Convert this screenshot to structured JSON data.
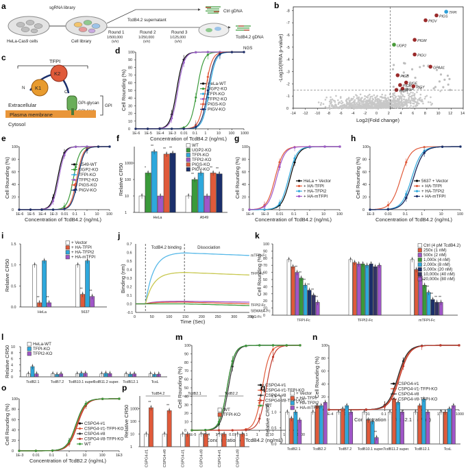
{
  "panels": {
    "a": "a",
    "b": "b",
    "c": "c",
    "d": "d",
    "e": "e",
    "f": "f",
    "g": "g",
    "h": "h",
    "i": "i",
    "j": "j",
    "k": "k",
    "l": "l",
    "m": "m",
    "n": "n",
    "o": "o",
    "p": "p",
    "q": "q"
  },
  "panel_a": {
    "sgrna": "sgRNA library",
    "hela_cas9": "HeLa-Cas9 cells",
    "cell_library": "Cell library",
    "supernatant": "TcdB4.2 supernatant",
    "rounds": [
      {
        "name": "Round 1",
        "dose": "1/500,000",
        "unit": "(v/v)"
      },
      {
        "name": "Round 2",
        "dose": "1/250,000",
        "unit": "(v/v)"
      },
      {
        "name": "Round 3",
        "dose": "1/125,000",
        "unit": "(v/v)"
      }
    ],
    "ctrl": "Ctrl gDNA",
    "tcdb": "TcdB4.2 gDNA",
    "ngs": "NGS"
  },
  "panel_b": {
    "ylabel": "-Log10(RRA p-value)",
    "xlabel": "Log2(Fold change)",
    "xticks": [
      "-14",
      "-12",
      "-10",
      "-8",
      "-6",
      "-4",
      "-2",
      "0",
      "2",
      "4",
      "6",
      "8",
      "10",
      "12",
      "14"
    ],
    "yticks": [
      "0",
      "-1",
      "-2",
      "-3",
      "-4",
      "-5",
      "-6",
      "-7",
      "-8"
    ],
    "genes": [
      {
        "name": "TFPI",
        "x": 11.2,
        "y": 7.9,
        "color": "#2e9fd8"
      },
      {
        "name": "PIGS",
        "x": 9.6,
        "y": 7.6,
        "color": "#9a2a2a"
      },
      {
        "name": "PIGV",
        "x": 7.8,
        "y": 7.2,
        "color": "#9a2a2a"
      },
      {
        "name": "UGP2",
        "x": 2.6,
        "y": 5.2,
        "color": "#4a9a3a"
      },
      {
        "name": "PIGM",
        "x": 6.0,
        "y": 5.6,
        "color": "#9a2a2a"
      },
      {
        "name": "PIGU",
        "x": 6.0,
        "y": 4.4,
        "color": "#9a2a2a"
      },
      {
        "name": "GPAA1",
        "x": 8.6,
        "y": 3.4,
        "color": "#9a2a2a"
      },
      {
        "name": "PIGB",
        "x": 3.2,
        "y": 2.7,
        "color": "#9a2a2a"
      },
      {
        "name": "PIGF",
        "x": 4.6,
        "y": 2.1,
        "color": "#9a2a2a"
      },
      {
        "name": "PIGK",
        "x": 3.6,
        "y": 1.9,
        "color": "#9a2a2a"
      },
      {
        "name": "PIGY",
        "x": 5.8,
        "y": 1.8,
        "color": "#9a2a2a"
      },
      {
        "name": "PIGP",
        "x": 4.0,
        "y": 1.6,
        "color": "#9a2a2a"
      },
      {
        "name": "PIGH",
        "x": 3.0,
        "y": 1.5,
        "color": "#9a2a2a"
      }
    ]
  },
  "panel_c": {
    "tfpi": "TFPI",
    "k1": "K1",
    "k2": "K2",
    "n": "N",
    "c": "C",
    "extracellular": "Extracellular",
    "glycan": "GPI-glycan",
    "lipid": "GPI-lipid",
    "gpi": "GPI",
    "membrane": "Plasma membrane",
    "cytosol": "Cytosol"
  },
  "curves": {
    "ylabel": "Cell Rounding (%)",
    "ylabel_short": "Cell Rounding (%)",
    "d": {
      "xlabel": "Concentration of TcdB4.2 (ng/mL)",
      "xticks": [
        "1E-6",
        "1E-5",
        "1E-4",
        "1E-3",
        "0.01",
        "0.1",
        "1",
        "10",
        "100",
        "1000"
      ],
      "yticks": [
        "0",
        "10",
        "20",
        "30",
        "40",
        "50",
        "60",
        "70",
        "80",
        "90",
        "100"
      ],
      "xmin": -6,
      "xmax": 3,
      "series": [
        {
          "name": "HeLa-WT",
          "color": "#000000",
          "ec50": -2.6
        },
        {
          "name": "UGP2-KO",
          "color": "#3a9a3a",
          "ec50": -0.9
        },
        {
          "name": "TFPI-KO",
          "color": "#2ea8dc",
          "ec50": 0.1
        },
        {
          "name": "TFPI2-KO",
          "color": "#9a60c8",
          "ec50": -2.5
        },
        {
          "name": "PIGS-KO",
          "color": "#e05a3a",
          "ec50": -0.2
        },
        {
          "name": "PIGV-KO",
          "color": "#1b2f6b",
          "ec50": 0.0
        }
      ]
    },
    "e": {
      "xlabel": "Concentration of TcdB4.2 (ng/mL)",
      "xticks": [
        "1E-6",
        "1E-5",
        "1E-4",
        "1E-3",
        "0.01",
        "0.1",
        "1",
        "10",
        "100"
      ],
      "yticks": [
        "0",
        "20",
        "40",
        "60",
        "80",
        "100"
      ],
      "xmin": -6,
      "xmax": 2,
      "series": [
        {
          "name": "A549-WT",
          "color": "#000000",
          "ec50": -2.6
        },
        {
          "name": "UGP2-KO",
          "color": "#3a9a3a",
          "ec50": -1.2
        },
        {
          "name": "TFPI-KO",
          "color": "#2ea8dc",
          "ec50": -0.8
        },
        {
          "name": "TFPI2-KO",
          "color": "#9a60c8",
          "ec50": -2.5
        },
        {
          "name": "PIGS-KO",
          "color": "#e05a3a",
          "ec50": -0.9
        },
        {
          "name": "PIGV-KO",
          "color": "#1b2f6b",
          "ec50": -0.8
        }
      ]
    },
    "g": {
      "xlabel": "Concentration of TcdB4.2 (ng/mL)",
      "xticks": [
        "1E-4",
        "1E-3",
        "0.01",
        "0.1",
        "1",
        "10",
        "100"
      ],
      "yticks": [
        "0",
        "20",
        "40",
        "60",
        "80",
        "100"
      ],
      "xmin": -4,
      "xmax": 2,
      "series": [
        {
          "name": "HeLa + Vector",
          "color": "#000000",
          "ec50": -1.3
        },
        {
          "name": "+ HA-TFPI",
          "color": "#e05a3a",
          "ec50": -2.3
        },
        {
          "name": "+ HA-TFPI2",
          "color": "#2ea8dc",
          "ec50": -1.4
        },
        {
          "name": "+ HA-mTFPI",
          "color": "#a056c8",
          "ec50": -2.2
        }
      ]
    },
    "h": {
      "xlabel": "Concentration of TcdB4.2 (ng/mL)",
      "xticks": [
        "1E-3",
        "0.01",
        "0.1",
        "1",
        "10",
        "100"
      ],
      "yticks": [
        "0",
        "20",
        "40",
        "60",
        "80",
        "100"
      ],
      "xmin": -3,
      "xmax": 2,
      "series": [
        {
          "name": "5637 + Vector",
          "color": "#000000",
          "ec50": -0.6
        },
        {
          "name": "+ HA-TFPI",
          "color": "#e05a3a",
          "ec50": -1.3
        },
        {
          "name": "+ HA-TFPI2",
          "color": "#2ea8dc",
          "ec50": -0.7
        },
        {
          "name": "+ HA-mTFPI",
          "color": "#1b2f6b",
          "ec50": -0.6
        }
      ]
    },
    "m": {
      "xlabel": "Concentration of TcdB4.2 (ng/mL)",
      "xticks": [
        "1E-5",
        "1E-4",
        "1E-3",
        "0.01",
        "0.1",
        "1",
        "10",
        "100",
        "1000"
      ],
      "yticks": [
        "0",
        "10",
        "20",
        "30",
        "40",
        "50",
        "60",
        "70",
        "80",
        "90",
        "100"
      ],
      "xmin": -5,
      "xmax": 3,
      "series": [
        {
          "name": "CSPG4-#1",
          "color": "#000000",
          "ec50": -2.4
        },
        {
          "name": "CSPG4-#1-TFPI-KO",
          "color": "#e05a3a",
          "ec50": 0.2
        },
        {
          "name": "CSPG4-#8",
          "color": "#333333",
          "ec50": -2.3
        },
        {
          "name": "CSPG4-#8-TFPI-KO",
          "color": "#c0392b",
          "ec50": 0.5
        },
        {
          "name": "WT",
          "color": "#3a9a3a",
          "ec50": -2.4
        }
      ]
    },
    "n": {
      "xlabel": "Concentration of TcdB2.1 (ng/mL)",
      "xticks": [
        "1E-4",
        "1E-3",
        "0.01",
        "0.1",
        "1",
        "10",
        "100",
        "1000"
      ],
      "yticks": [
        "0",
        "20",
        "40",
        "60",
        "80",
        "100"
      ],
      "xmin": -4,
      "xmax": 3,
      "series": [
        {
          "name": "CSPG4-#1",
          "color": "#000000",
          "ec50": -0.3
        },
        {
          "name": "CSPG4-#1-TFPI-KO",
          "color": "#e05a3a",
          "ec50": -0.25
        },
        {
          "name": "CSPG4-#8",
          "color": "#333333",
          "ec50": -0.3
        },
        {
          "name": "CSPG4-#8-TFPI-KO",
          "color": "#c0392b",
          "ec50": -0.2
        }
      ]
    },
    "o": {
      "xlabel": "Concentration of TcdB2.2 (ng/mL)",
      "xticks": [
        "1E-3",
        "0.01",
        "0.1",
        "1",
        "10",
        "100",
        "1E3"
      ],
      "yticks": [
        "0",
        "20",
        "40",
        "60",
        "80",
        "100"
      ],
      "xmin": -3,
      "xmax": 3,
      "series": [
        {
          "name": "CSPG4-#1",
          "color": "#000000",
          "ec50": 0.4
        },
        {
          "name": "CSPG4-#1-TFPI-KO",
          "color": "#e05a3a",
          "ec50": 0.45
        },
        {
          "name": "CSPG4-#8",
          "color": "#333333",
          "ec50": 0.4
        },
        {
          "name": "CSPG4-#8-TFPI-KO",
          "color": "#c0392b",
          "ec50": 0.5
        },
        {
          "name": "WT",
          "color": "#3a9a3a",
          "ec50": 0.4
        }
      ]
    }
  },
  "panel_f": {
    "ylabel": "Relative CR50",
    "groups": [
      "HeLa",
      "A549"
    ],
    "yticks": [
      "1",
      "10",
      "100",
      "1000"
    ],
    "series": [
      {
        "name": "WT",
        "color": "#ffffff"
      },
      {
        "name": "UGP2-KO",
        "color": "#3a9a3a"
      },
      {
        "name": "TFPI-KO",
        "color": "#2ea8dc"
      },
      {
        "name": "TFPI2-KO",
        "color": "#a056c8"
      },
      {
        "name": "PIGS-KO",
        "color": "#e05a3a"
      },
      {
        "name": "PIGV-KO",
        "color": "#1b2f6b"
      }
    ],
    "values": [
      [
        1,
        25,
        500,
        1,
        350,
        400
      ],
      [
        1,
        10,
        25,
        1,
        25,
        22
      ]
    ],
    "stars": [
      [
        "",
        "*",
        "**",
        "",
        "**",
        "**"
      ],
      [
        "",
        "**",
        "**",
        "",
        "**",
        "**"
      ]
    ]
  },
  "panel_i": {
    "ylabel": "Relative CR50",
    "groups": [
      "HeLa",
      "5637"
    ],
    "yticks": [
      "0.0",
      "0.5",
      "1.0",
      "1.5"
    ],
    "series": [
      {
        "name": "+ Vector",
        "color": "#ffffff"
      },
      {
        "name": "+ HA-TFPI",
        "color": "#e05a3a"
      },
      {
        "name": "+ HA-TFPI2",
        "color": "#2ea8dc"
      },
      {
        "name": "+ HA-mTFPI",
        "color": "#a056c8"
      }
    ],
    "values": [
      [
        1.0,
        0.1,
        1.1,
        0.1
      ],
      [
        1.0,
        0.3,
        1.1,
        0.25
      ]
    ],
    "stars": [
      [
        "",
        "**",
        "",
        "**"
      ],
      [
        "",
        "**",
        "",
        "**"
      ]
    ]
  },
  "panel_j": {
    "ylabel": "Binding (nm)",
    "xlabel": "Time (Sec)",
    "binding": "TcdB4.2 binding",
    "dissociation": "Dissociation",
    "xticks": [
      "0",
      "50",
      "100",
      "150",
      "200",
      "250",
      "300",
      "350"
    ],
    "yticks": [
      "-0.1",
      "0.0",
      "0.1",
      "0.2",
      "0.3",
      "0.4",
      "0.5",
      "0.6",
      "0.7"
    ],
    "series": [
      {
        "name": "mTFPI-Fc",
        "color": "#56b8e8",
        "plateau": 0.6,
        "end": 0.57
      },
      {
        "name": "TFPI-Fc",
        "color": "#c8c850",
        "plateau": 0.37,
        "end": 0.34
      },
      {
        "name": "TFPI2-Fc",
        "color": "#a056c8",
        "plateau": 0.03,
        "end": 0.02
      },
      {
        "name": "SEMA6A-Fc",
        "color": "#e05a3a",
        "plateau": 0.02,
        "end": 0.0
      },
      {
        "name": "IgG-Fc",
        "color": "#3a9a3a",
        "plateau": 0.0,
        "end": -0.02
      }
    ]
  },
  "panel_k": {
    "ylabel": "Cell Rounding (%)",
    "groups": [
      "TFPI-Fc",
      "TFPI2-Fc",
      "mTFPI-Fc"
    ],
    "yticks": [
      "0",
      "10",
      "20",
      "30",
      "40",
      "50",
      "60",
      "70",
      "80",
      "90",
      "100"
    ],
    "legend": [
      "Ctrl (4 pM TcdB4.2)",
      "250x (1 nM)",
      "500x (2 nM)",
      "1,000x (4 nM)",
      "2,000x (8 nM)",
      "5,000x (20 nM)",
      "10,000x (40 nM)",
      "20,000x (80 nM)"
    ],
    "colors": [
      "#ffffff",
      "#e05a3a",
      "#a056c8",
      "#3a9a3a",
      "#2ea8dc",
      "#1b2f6b",
      "#333366",
      "#a056c8"
    ],
    "values": [
      [
        78,
        68,
        60,
        52,
        42,
        35,
        28,
        18
      ],
      [
        78,
        74,
        72,
        72,
        70,
        72,
        68,
        70
      ],
      [
        78,
        64,
        55,
        42,
        32,
        22,
        18,
        18
      ]
    ],
    "stars": [
      [
        "",
        "*",
        "**",
        "**",
        "**",
        "**",
        "**",
        "**"
      ],
      [
        "",
        "",
        "",
        "",
        "",
        "",
        "",
        ""
      ],
      [
        "",
        "",
        "**",
        "**",
        "**",
        "**",
        "**",
        "**"
      ]
    ]
  },
  "panel_l": {
    "ylabel": "Relative CR50",
    "groups": [
      "TcdB2.1",
      "TcdB7.2",
      "TcdB10.1 super.",
      "TcdB11.2 super.",
      "TcdB12.1",
      "TcsL"
    ],
    "yticks": [
      "0",
      "2",
      "4",
      "6",
      "8",
      "10"
    ],
    "series": [
      {
        "name": "HeLa-WT",
        "color": "#ffffff"
      },
      {
        "name": "TFPI-KO",
        "color": "#2ea8dc"
      },
      {
        "name": "TFPI2-KO",
        "color": "#a056c8"
      }
    ],
    "values": [
      [
        1,
        3.4,
        1
      ],
      [
        1,
        0.8,
        1
      ],
      [
        1,
        1.2,
        1.2
      ],
      [
        1,
        1.2,
        1.1
      ],
      [
        1,
        0.9,
        1
      ],
      [
        1,
        0.8,
        0.9
      ]
    ]
  },
  "panel_p": {
    "ylabel": "Relative CR50",
    "toxins": [
      "TcdB4.2",
      "TcdB2.1",
      "TcdB2.2"
    ],
    "groups": [
      "CSPG4-#1",
      "CSPG4-#8",
      "CSPG4-#1",
      "CSPG4-#8",
      "CSPG4-#1",
      "CSPG4-#8"
    ],
    "yticks": [
      "1",
      "10",
      "100",
      "1000"
    ],
    "series": [
      {
        "name": "WT",
        "color": "#ffffff"
      },
      {
        "name": "TFPI-KO",
        "color": "#e05a3a"
      }
    ],
    "values": [
      [
        1,
        120
      ],
      [
        1,
        70
      ],
      [
        1,
        1
      ],
      [
        1,
        1
      ],
      [
        1,
        1
      ],
      [
        1,
        1
      ]
    ],
    "stars": [
      [
        "",
        "**"
      ],
      [
        "",
        "**"
      ],
      [
        "",
        ""
      ],
      [
        "",
        ""
      ],
      [
        "",
        ""
      ],
      [
        "",
        ""
      ]
    ]
  },
  "panel_q": {
    "ylabel": "Relative CR50",
    "groups": [
      "TcdB2.1",
      "TcdB2.2",
      "TcdB7.2",
      "TcdB10.1 super.",
      "TcdB11.2 super.",
      "TcdB12.1",
      "TcsL"
    ],
    "yticks": [
      "0.0",
      "0.5",
      "1.0",
      "1.5"
    ],
    "series": [
      {
        "name": "+ Vector",
        "color": "#ffffff"
      },
      {
        "name": "+ HA-TFPI",
        "color": "#e05a3a"
      },
      {
        "name": "+ HA-TFPI2",
        "color": "#2ea8dc"
      },
      {
        "name": "+ HA-mTFPI",
        "color": "#a056c8"
      }
    ],
    "values": [
      [
        1,
        0.8,
        1.0,
        0.75
      ],
      [
        1,
        1.2,
        1.2,
        1.3
      ],
      [
        1,
        1.1,
        1.2,
        1.0
      ],
      [
        1,
        0.75,
        0.7,
        0.2
      ],
      [
        1,
        1.4,
        1.3,
        1.0
      ],
      [
        1,
        1.2,
        1.4,
        1.0
      ],
      [
        1,
        1.0,
        1.1,
        1.2
      ]
    ],
    "stars": [
      [
        "",
        "",
        "",
        ""
      ],
      [
        "",
        "",
        "",
        ""
      ],
      [
        "",
        "",
        "",
        ""
      ],
      [
        "",
        "",
        "",
        "**"
      ],
      [
        "",
        "",
        "",
        ""
      ],
      [
        "",
        "",
        "",
        ""
      ],
      [
        "",
        "",
        "",
        ""
      ]
    ]
  }
}
